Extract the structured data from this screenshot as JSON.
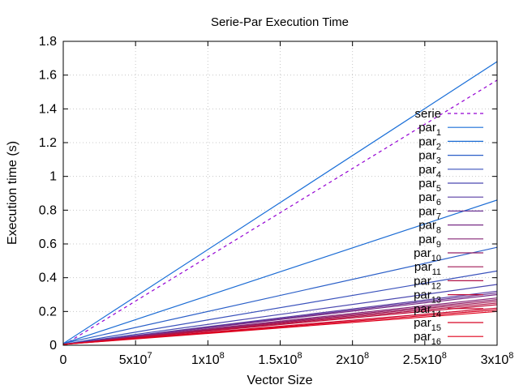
{
  "chart_data": {
    "type": "line",
    "title": "Serie-Par Execution Time",
    "xlabel": "Vector Size",
    "ylabel": "Execution time (s)",
    "xlim": [
      0,
      300000000
    ],
    "ylim": [
      0,
      1.8
    ],
    "x_ticks": [
      {
        "value": 0,
        "label": "0"
      },
      {
        "value": 50000000,
        "label": "5x10",
        "exp": "7"
      },
      {
        "value": 100000000,
        "label": "1x10",
        "exp": "8"
      },
      {
        "value": 150000000,
        "label": "1.5x10",
        "exp": "8"
      },
      {
        "value": 200000000,
        "label": "2x10",
        "exp": "8"
      },
      {
        "value": 250000000,
        "label": "2.5x10",
        "exp": "8"
      },
      {
        "value": 300000000,
        "label": "3x10",
        "exp": "8"
      }
    ],
    "y_ticks": [
      {
        "value": 0,
        "label": "0"
      },
      {
        "value": 0.2,
        "label": "0.2"
      },
      {
        "value": 0.4,
        "label": "0.4"
      },
      {
        "value": 0.6,
        "label": "0.6"
      },
      {
        "value": 0.8,
        "label": "0.8"
      },
      {
        "value": 1.0,
        "label": "1"
      },
      {
        "value": 1.2,
        "label": "1.2"
      },
      {
        "value": 1.4,
        "label": "1.4"
      },
      {
        "value": 1.6,
        "label": "1.6"
      },
      {
        "value": 1.8,
        "label": "1.8"
      }
    ],
    "grid": true,
    "legend_position": "right",
    "series": [
      {
        "name": "serie",
        "sub": "",
        "color": "#9400d3",
        "dashed": true,
        "x": [
          0,
          300000000
        ],
        "y": [
          0,
          1.57
        ]
      },
      {
        "name": "par",
        "sub": "1",
        "color": "#1a6fd8",
        "dashed": false,
        "x": [
          0,
          300000000
        ],
        "y": [
          0.01,
          1.68
        ]
      },
      {
        "name": "par",
        "sub": "2",
        "color": "#1a6bd4",
        "dashed": false,
        "x": [
          0,
          300000000
        ],
        "y": [
          0.01,
          0.86
        ]
      },
      {
        "name": "par",
        "sub": "3",
        "color": "#2a5fc8",
        "dashed": false,
        "x": [
          0,
          300000000
        ],
        "y": [
          0.01,
          0.58
        ]
      },
      {
        "name": "par",
        "sub": "4",
        "color": "#3a52bc",
        "dashed": false,
        "x": [
          0,
          300000000
        ],
        "y": [
          0.005,
          0.44
        ]
      },
      {
        "name": "par",
        "sub": "5",
        "color": "#4a48b0",
        "dashed": false,
        "x": [
          0,
          300000000
        ],
        "y": [
          0.005,
          0.36
        ]
      },
      {
        "name": "par",
        "sub": "6",
        "color": "#5a3ea4",
        "dashed": false,
        "x": [
          0,
          300000000
        ],
        "y": [
          0.005,
          0.32
        ]
      },
      {
        "name": "par",
        "sub": "7",
        "color": "#6a3494",
        "dashed": false,
        "x": [
          0,
          300000000
        ],
        "y": [
          0.005,
          0.31
        ]
      },
      {
        "name": "par",
        "sub": "8",
        "color": "#782c86",
        "dashed": false,
        "x": [
          0,
          300000000
        ],
        "y": [
          0.005,
          0.3
        ]
      },
      {
        "name": "par",
        "sub": "9",
        "color": "#862676",
        "dashed": false,
        "x": [
          0,
          300000000
        ],
        "y": [
          0.005,
          0.28
        ]
      },
      {
        "name": "par",
        "sub": "10",
        "color": "#942066",
        "dashed": false,
        "x": [
          0,
          300000000
        ],
        "y": [
          0.005,
          0.27
        ]
      },
      {
        "name": "par",
        "sub": "11",
        "color": "#a21a56",
        "dashed": false,
        "x": [
          0,
          300000000
        ],
        "y": [
          0.005,
          0.26
        ]
      },
      {
        "name": "par",
        "sub": "12",
        "color": "#b01448",
        "dashed": false,
        "x": [
          0,
          300000000
        ],
        "y": [
          0.005,
          0.25
        ]
      },
      {
        "name": "par",
        "sub": "13",
        "color": "#be0e3a",
        "dashed": false,
        "x": [
          0,
          300000000
        ],
        "y": [
          0.005,
          0.24
        ]
      },
      {
        "name": "par",
        "sub": "14",
        "color": "#cc082e",
        "dashed": false,
        "x": [
          0,
          300000000
        ],
        "y": [
          0.005,
          0.22
        ]
      },
      {
        "name": "par",
        "sub": "15",
        "color": "#d80424",
        "dashed": false,
        "x": [
          0,
          300000000
        ],
        "y": [
          0.005,
          0.21
        ]
      },
      {
        "name": "par",
        "sub": "16",
        "color": "#e0001c",
        "dashed": false,
        "x": [
          0,
          300000000
        ],
        "y": [
          0.005,
          0.2
        ]
      }
    ]
  }
}
